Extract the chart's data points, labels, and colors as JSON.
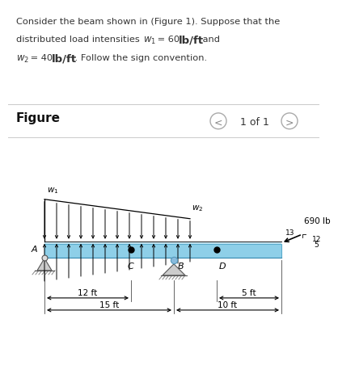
{
  "bg_top_color": "#e8f4f8",
  "bg_bottom_color": "#ffffff",
  "text_line1": "Consider the beam shown in (Figure 1). Suppose that the",
  "text_line2a": "distributed load intensities ",
  "text_line2b": " = 60  ",
  "text_line2c": "lb/ft",
  "text_line2d": " and",
  "text_line3b": " = 40  ",
  "text_line3c": "lb/ft",
  "text_line3d": " . Follow the sign convention.",
  "figure_label": "Figure",
  "nav_text": "1 of 1",
  "beam_color": "#8ecfe8",
  "beam_edge_color": "#5aabcc",
  "beam_top_color": "#aaddee",
  "force_label": "690 lb",
  "ratio_13": "13",
  "ratio_12": "12",
  "ratio_5": "5",
  "dim_12ft": "12 ft",
  "dim_15ft": "15 ft",
  "dim_5ft": "5 ft",
  "dim_10ft": "10 ft",
  "label_A": "A",
  "label_C": "C",
  "label_B": "B",
  "label_D": "D",
  "text_color": "#333333",
  "chegg_blue": "#1a75cf",
  "arrow_color": "#111111",
  "support_color": "#999999",
  "ground_color": "#888888"
}
